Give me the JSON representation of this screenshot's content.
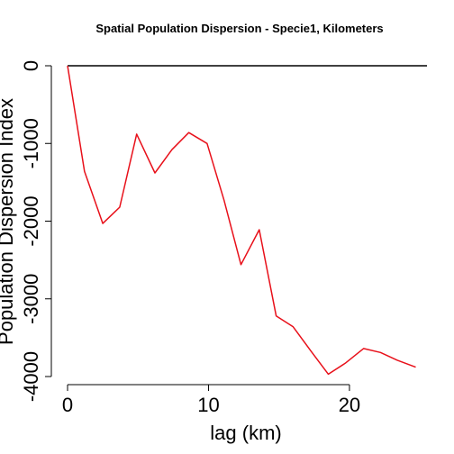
{
  "chart_data": {
    "type": "line",
    "title": "Spatial Population Dispersion - Specie1, Kilometers",
    "xlabel": "lag (km)",
    "ylabel": "Population Dispersion Index",
    "xlim": [
      0,
      25.5
    ],
    "ylim": [
      -4000,
      0
    ],
    "x_ticks": [
      0,
      10,
      20
    ],
    "y_ticks": [
      0,
      -1000,
      -2000,
      -3000,
      -4000
    ],
    "grid": false,
    "reference_line": {
      "y": 0,
      "color": "#000000"
    },
    "series": [
      {
        "color": "#e8101a",
        "x": [
          0,
          1.2,
          2.5,
          3.7,
          4.9,
          6.2,
          7.4,
          8.6,
          9.9,
          11.1,
          12.3,
          13.6,
          14.8,
          16.0,
          17.3,
          18.5,
          19.7,
          21.0,
          22.2,
          23.4,
          24.7
        ],
        "y": [
          0,
          -1360,
          -2030,
          -1820,
          -880,
          -1380,
          -1080,
          -860,
          -1000,
          -1730,
          -2560,
          -2110,
          -3220,
          -3360,
          -3680,
          -3970,
          -3830,
          -3640,
          -3690,
          -3790,
          -3880
        ]
      }
    ]
  }
}
